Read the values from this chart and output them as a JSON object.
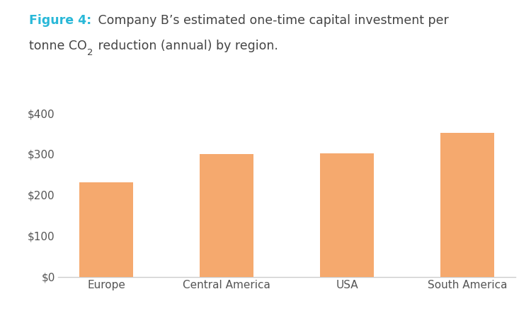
{
  "categories": [
    "Europe",
    "Central America",
    "USA",
    "South America"
  ],
  "values": [
    230,
    300,
    302,
    352
  ],
  "bar_color": "#F5A96E",
  "background_color": "#ffffff",
  "ylim": [
    0,
    420
  ],
  "yticks": [
    0,
    100,
    200,
    300,
    400
  ],
  "title_figure_label": "Figure 4:",
  "title_figure_color": "#29B8D8",
  "title_main_line1": " Company B’s estimated one-time capital investment per",
  "title_main_line2_pre": "tonne CO",
  "title_main_line2_sub": "2",
  "title_main_line2_post": " reduction (annual) by region.",
  "title_color": "#444444",
  "title_fontsize": 12.5,
  "tick_fontsize": 11,
  "bar_width": 0.45,
  "axis_color": "#cccccc"
}
